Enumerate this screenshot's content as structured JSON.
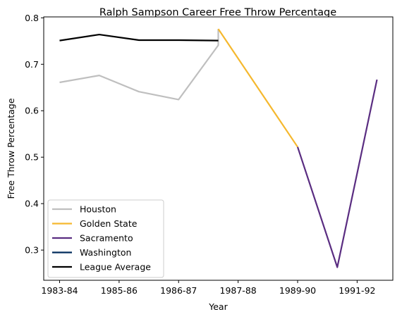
{
  "chart_data": {
    "type": "line",
    "title": "Ralph Sampson Career Free Throw Percentage",
    "xlabel": "Year",
    "ylabel": "Free Throw Percentage",
    "x_ticks": [
      "1983-84",
      "1985-86",
      "1986-87",
      "1987-88",
      "1989-90",
      "1991-92"
    ],
    "x_tick_positions": [
      0,
      1.5,
      3,
      4.5,
      6,
      7.5
    ],
    "ylim": [
      0.235,
      0.802
    ],
    "y_ticks": [
      0.3,
      0.4,
      0.5,
      0.6,
      0.7,
      0.8
    ],
    "y_tick_labels": [
      "0.3",
      "0.4",
      "0.5",
      "0.6",
      "0.7",
      "0.8"
    ],
    "xlim": [
      -0.4,
      8.4
    ],
    "grid": false,
    "legend_position": "lower left",
    "series": [
      {
        "name": "Houston",
        "color": "#BFBFBF",
        "x": [
          0,
          1,
          2,
          3,
          4,
          4
        ],
        "y": [
          0.661,
          0.676,
          0.641,
          0.624,
          0.741,
          0.776
        ]
      },
      {
        "name": "Golden State",
        "color": "#F5B82E",
        "x": [
          4,
          6
        ],
        "y": [
          0.776,
          0.522
        ]
      },
      {
        "name": "Sacramento",
        "color": "#5A2D81",
        "x": [
          6,
          7,
          8
        ],
        "y": [
          0.522,
          0.263,
          0.667
        ]
      },
      {
        "name": "Washington",
        "color": "#002B5C",
        "x": [],
        "y": []
      },
      {
        "name": "League Average",
        "color": "#000000",
        "x": [
          0,
          1,
          2,
          3,
          4
        ],
        "y": [
          0.751,
          0.764,
          0.752,
          0.752,
          0.751
        ]
      }
    ]
  }
}
